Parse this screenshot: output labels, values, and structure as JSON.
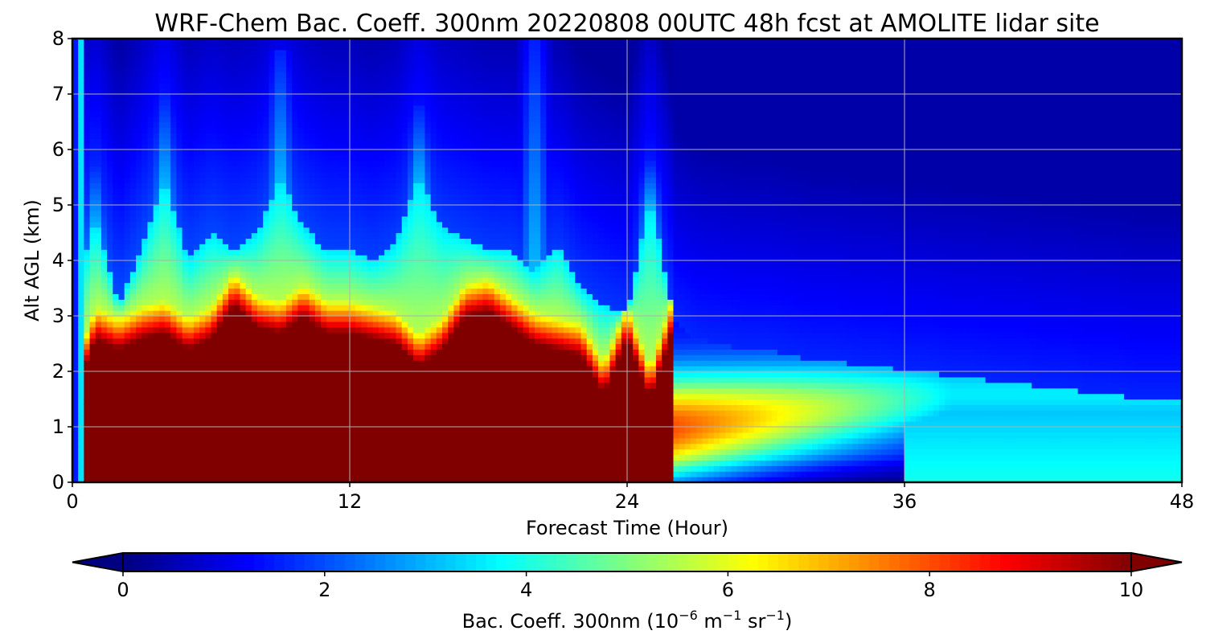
{
  "chart_data": {
    "type": "heatmap",
    "title": "WRF-Chem Bac. Coeff. 300nm  20220808 00UTC 48h fcst at AMOLITE lidar site",
    "xlabel": "Forecast Time (Hour)",
    "ylabel": "Alt AGL (km)",
    "xlim": [
      0,
      48
    ],
    "ylim": [
      0,
      8
    ],
    "x_ticks": [
      "0",
      "12",
      "24",
      "36",
      "48"
    ],
    "y_ticks": [
      "0",
      "1",
      "2",
      "3",
      "4",
      "5",
      "6",
      "7",
      "8"
    ],
    "grid": true,
    "colormap": "jet",
    "colorbar": {
      "label": "Bac. Coeff. 300nm  (10",
      "label_exp1": "−6",
      "label_mid": " m",
      "label_exp2": "−1",
      "label_mid2": " sr",
      "label_exp3": "−1",
      "label_end": ")",
      "range": [
        0,
        10
      ],
      "ticks": [
        "0",
        "2",
        "4",
        "6",
        "8",
        "10"
      ],
      "extend": "both",
      "placement": "bottom"
    },
    "times_h": [
      0,
      0.5,
      1,
      2,
      3,
      4,
      5,
      6,
      7,
      8,
      9,
      10,
      11,
      12,
      13,
      14,
      15,
      16,
      17,
      18,
      19,
      20,
      21,
      22,
      23,
      24,
      25,
      26,
      27,
      28,
      29,
      30,
      31,
      32,
      33,
      34,
      35,
      36,
      37,
      38,
      39,
      40,
      41,
      42,
      43,
      44,
      45,
      46,
      47,
      48
    ],
    "dense_layer_top_km": [
      0,
      2.0,
      2.6,
      2.4,
      2.6,
      2.7,
      2.4,
      2.6,
      3.2,
      2.8,
      2.7,
      3.0,
      2.7,
      2.7,
      2.6,
      2.5,
      2.1,
      2.4,
      3.0,
      3.1,
      2.8,
      2.5,
      2.4,
      2.3,
      1.6,
      2.6,
      1.5,
      2.8,
      1.9,
      1.8,
      1.7,
      1.6,
      1.2,
      0.9,
      0.6,
      0.4,
      0.3,
      0.2,
      0.1,
      0.1,
      0.1,
      0.1,
      0.1,
      0.1,
      0.1,
      0.1,
      0.1,
      0.1,
      0.1,
      0.1
    ],
    "aerosol_layer_top_km": [
      0,
      4.0,
      4.8,
      3.2,
      4.2,
      5.5,
      4.0,
      4.5,
      4.2,
      4.5,
      5.5,
      4.6,
      4.2,
      4.2,
      4.0,
      4.3,
      5.5,
      4.6,
      4.4,
      4.2,
      4.2,
      3.8,
      4.3,
      3.5,
      3.2,
      3.0,
      5.2,
      3.0,
      2.6,
      2.5,
      2.4,
      2.4,
      2.3,
      2.2,
      2.2,
      2.1,
      2.1,
      2.0,
      2.0,
      1.9,
      1.9,
      1.8,
      1.8,
      1.7,
      1.7,
      1.6,
      1.6,
      1.5,
      1.5,
      1.5
    ],
    "plume_peaks": [
      {
        "t": 1,
        "top": 5.8
      },
      {
        "t": 4,
        "top": 7.0
      },
      {
        "t": 9,
        "top": 7.8
      },
      {
        "t": 15,
        "top": 6.8
      },
      {
        "t": 20,
        "top": 8.0
      },
      {
        "t": 25,
        "top": 5.8
      }
    ]
  }
}
